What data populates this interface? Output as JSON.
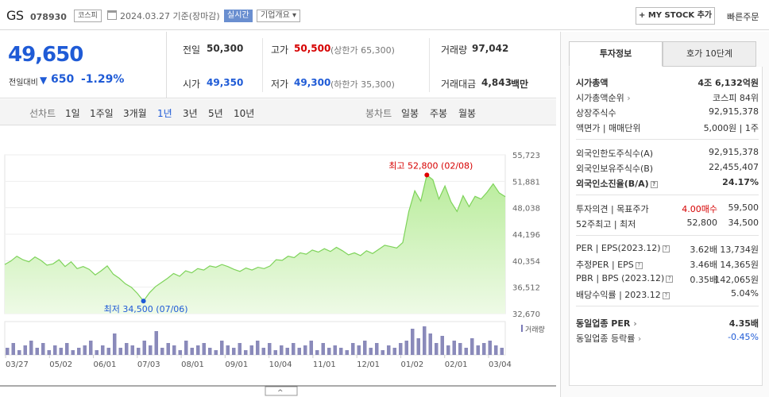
{
  "header": {
    "name": "GS",
    "code": "078930",
    "market": "코스피",
    "date": "2024.03.27 기준(장마감)",
    "realtime": "실시간",
    "company_info": "기업개요",
    "mystock": "+ MY STOCK 추가",
    "quick_order": "빠른주문"
  },
  "price": {
    "current": "49,650",
    "diff_label": "전일대비",
    "diff": "650",
    "rate": "-1.29%",
    "prev_label": "전일",
    "prev": "50,300",
    "high_label": "고가",
    "high": "50,500",
    "upper_limit": "(상한가 65,300)",
    "volume_label": "거래량",
    "volume": "97,042",
    "open_label": "시가",
    "open": "49,350",
    "low_label": "저가",
    "low": "49,300",
    "lower_limit": "(하한가 35,300)",
    "amount_label": "거래대금",
    "amount": "4,843",
    "amount_unit": "백만"
  },
  "tabs": {
    "line_label": "선차트",
    "periods": [
      "1일",
      "1주일",
      "3개월",
      "1년",
      "3년",
      "5년",
      "10년"
    ],
    "selected": "1년",
    "candle_label": "봉차트",
    "candles": [
      "일봉",
      "주봉",
      "월봉"
    ]
  },
  "chart_data": {
    "type": "area",
    "y_ticks": [
      "55,723",
      "51,881",
      "48,038",
      "44,196",
      "40,354",
      "36,512",
      "32,670"
    ],
    "ylim": [
      32670,
      55723
    ],
    "x_ticks": [
      "03/27",
      "05/02",
      "06/01",
      "07/03",
      "08/01",
      "09/01",
      "10/04",
      "11/01",
      "12/01",
      "01/02",
      "02/01",
      "03/04"
    ],
    "series": [
      {
        "values": [
          39800,
          40300,
          41000,
          40500,
          40200,
          40900,
          40400,
          39700,
          39900,
          40500,
          39500,
          40200,
          39200,
          39500,
          39100,
          38300,
          38900,
          39600,
          38400,
          37800,
          37000,
          36500,
          35600,
          34500,
          35700,
          36600,
          37200,
          37800,
          38500,
          38100,
          38900,
          38600,
          39200,
          39000,
          39600,
          39400,
          39800,
          39500,
          39100,
          38800,
          39300,
          39000,
          39400,
          39200,
          39600,
          40500,
          40400,
          41000,
          40800,
          41500,
          41300,
          41900,
          41600,
          42100,
          41700,
          42300,
          41800,
          41200,
          41500,
          41100,
          41800,
          41400,
          42000,
          42600,
          42400,
          42200,
          43000,
          47500,
          50500,
          49000,
          52800,
          52100,
          49300,
          51200,
          48900,
          47500,
          49800,
          48200,
          49700,
          49300,
          50300,
          51500,
          50200,
          49650
        ]
      }
    ],
    "max_label": "최고 52,800 (02/08)",
    "min_label": "최저 34,500 (07/06)",
    "volume_label": "거래량",
    "volume_values": [
      3,
      5,
      2,
      4,
      6,
      3,
      5,
      2,
      4,
      3,
      5,
      2,
      3,
      4,
      6,
      2,
      4,
      3,
      9,
      3,
      5,
      4,
      3,
      6,
      4,
      10,
      3,
      5,
      4,
      2,
      6,
      3,
      4,
      5,
      3,
      2,
      6,
      4,
      3,
      5,
      2,
      4,
      6,
      3,
      5,
      2,
      4,
      3,
      5,
      3,
      4,
      6,
      2,
      5,
      3,
      4,
      3,
      2,
      5,
      4,
      6,
      3,
      5,
      2,
      4,
      3,
      5,
      6,
      11,
      7,
      12,
      9,
      5,
      8,
      4,
      6,
      5,
      3,
      7,
      4,
      5,
      6,
      4,
      3
    ]
  },
  "invest": {
    "tab_active": "투자정보",
    "tab_inactive": "호가 10단계",
    "market_cap_label": "시가총액",
    "market_cap": "4조 6,132억원",
    "cap_rank_label": "시가총액순위",
    "cap_rank": "코스피 84위",
    "shares_label": "상장주식수",
    "shares": "92,915,378",
    "par_label": "액면가 | 매매단위",
    "par": "5,000원 | 1주",
    "foreign_limit_label": "외국인한도주식수(A)",
    "foreign_limit": "92,915,378",
    "foreign_hold_label": "외국인보유주식수(B)",
    "foreign_hold": "22,455,407",
    "foreign_rate_label": "외국인소진율(B/A)",
    "foreign_rate": "24.17%",
    "opinion_label": "투자의견 | 목표주가",
    "opinion": "4.00매수",
    "target": "59,500",
    "w52_label": "52주최고 | 최저",
    "w52_high": "52,800",
    "w52_low": "34,500",
    "per_label": "PER | EPS(2023.12)",
    "per": "3.62배",
    "eps": "13,734원",
    "fper_label": "추정PER | EPS",
    "fper": "3.46배",
    "feps": "14,365원",
    "pbr_label": "PBR | BPS (2023.12)",
    "pbr": "0.35배",
    "bps": "142,065원",
    "div_label": "배당수익률 | 2023.12",
    "div": "5.04%",
    "ind_per_label": "동일업종 PER",
    "ind_per": "4.35배",
    "ind_rate_label": "동일업종 등락률",
    "ind_rate": "-0.45%"
  }
}
